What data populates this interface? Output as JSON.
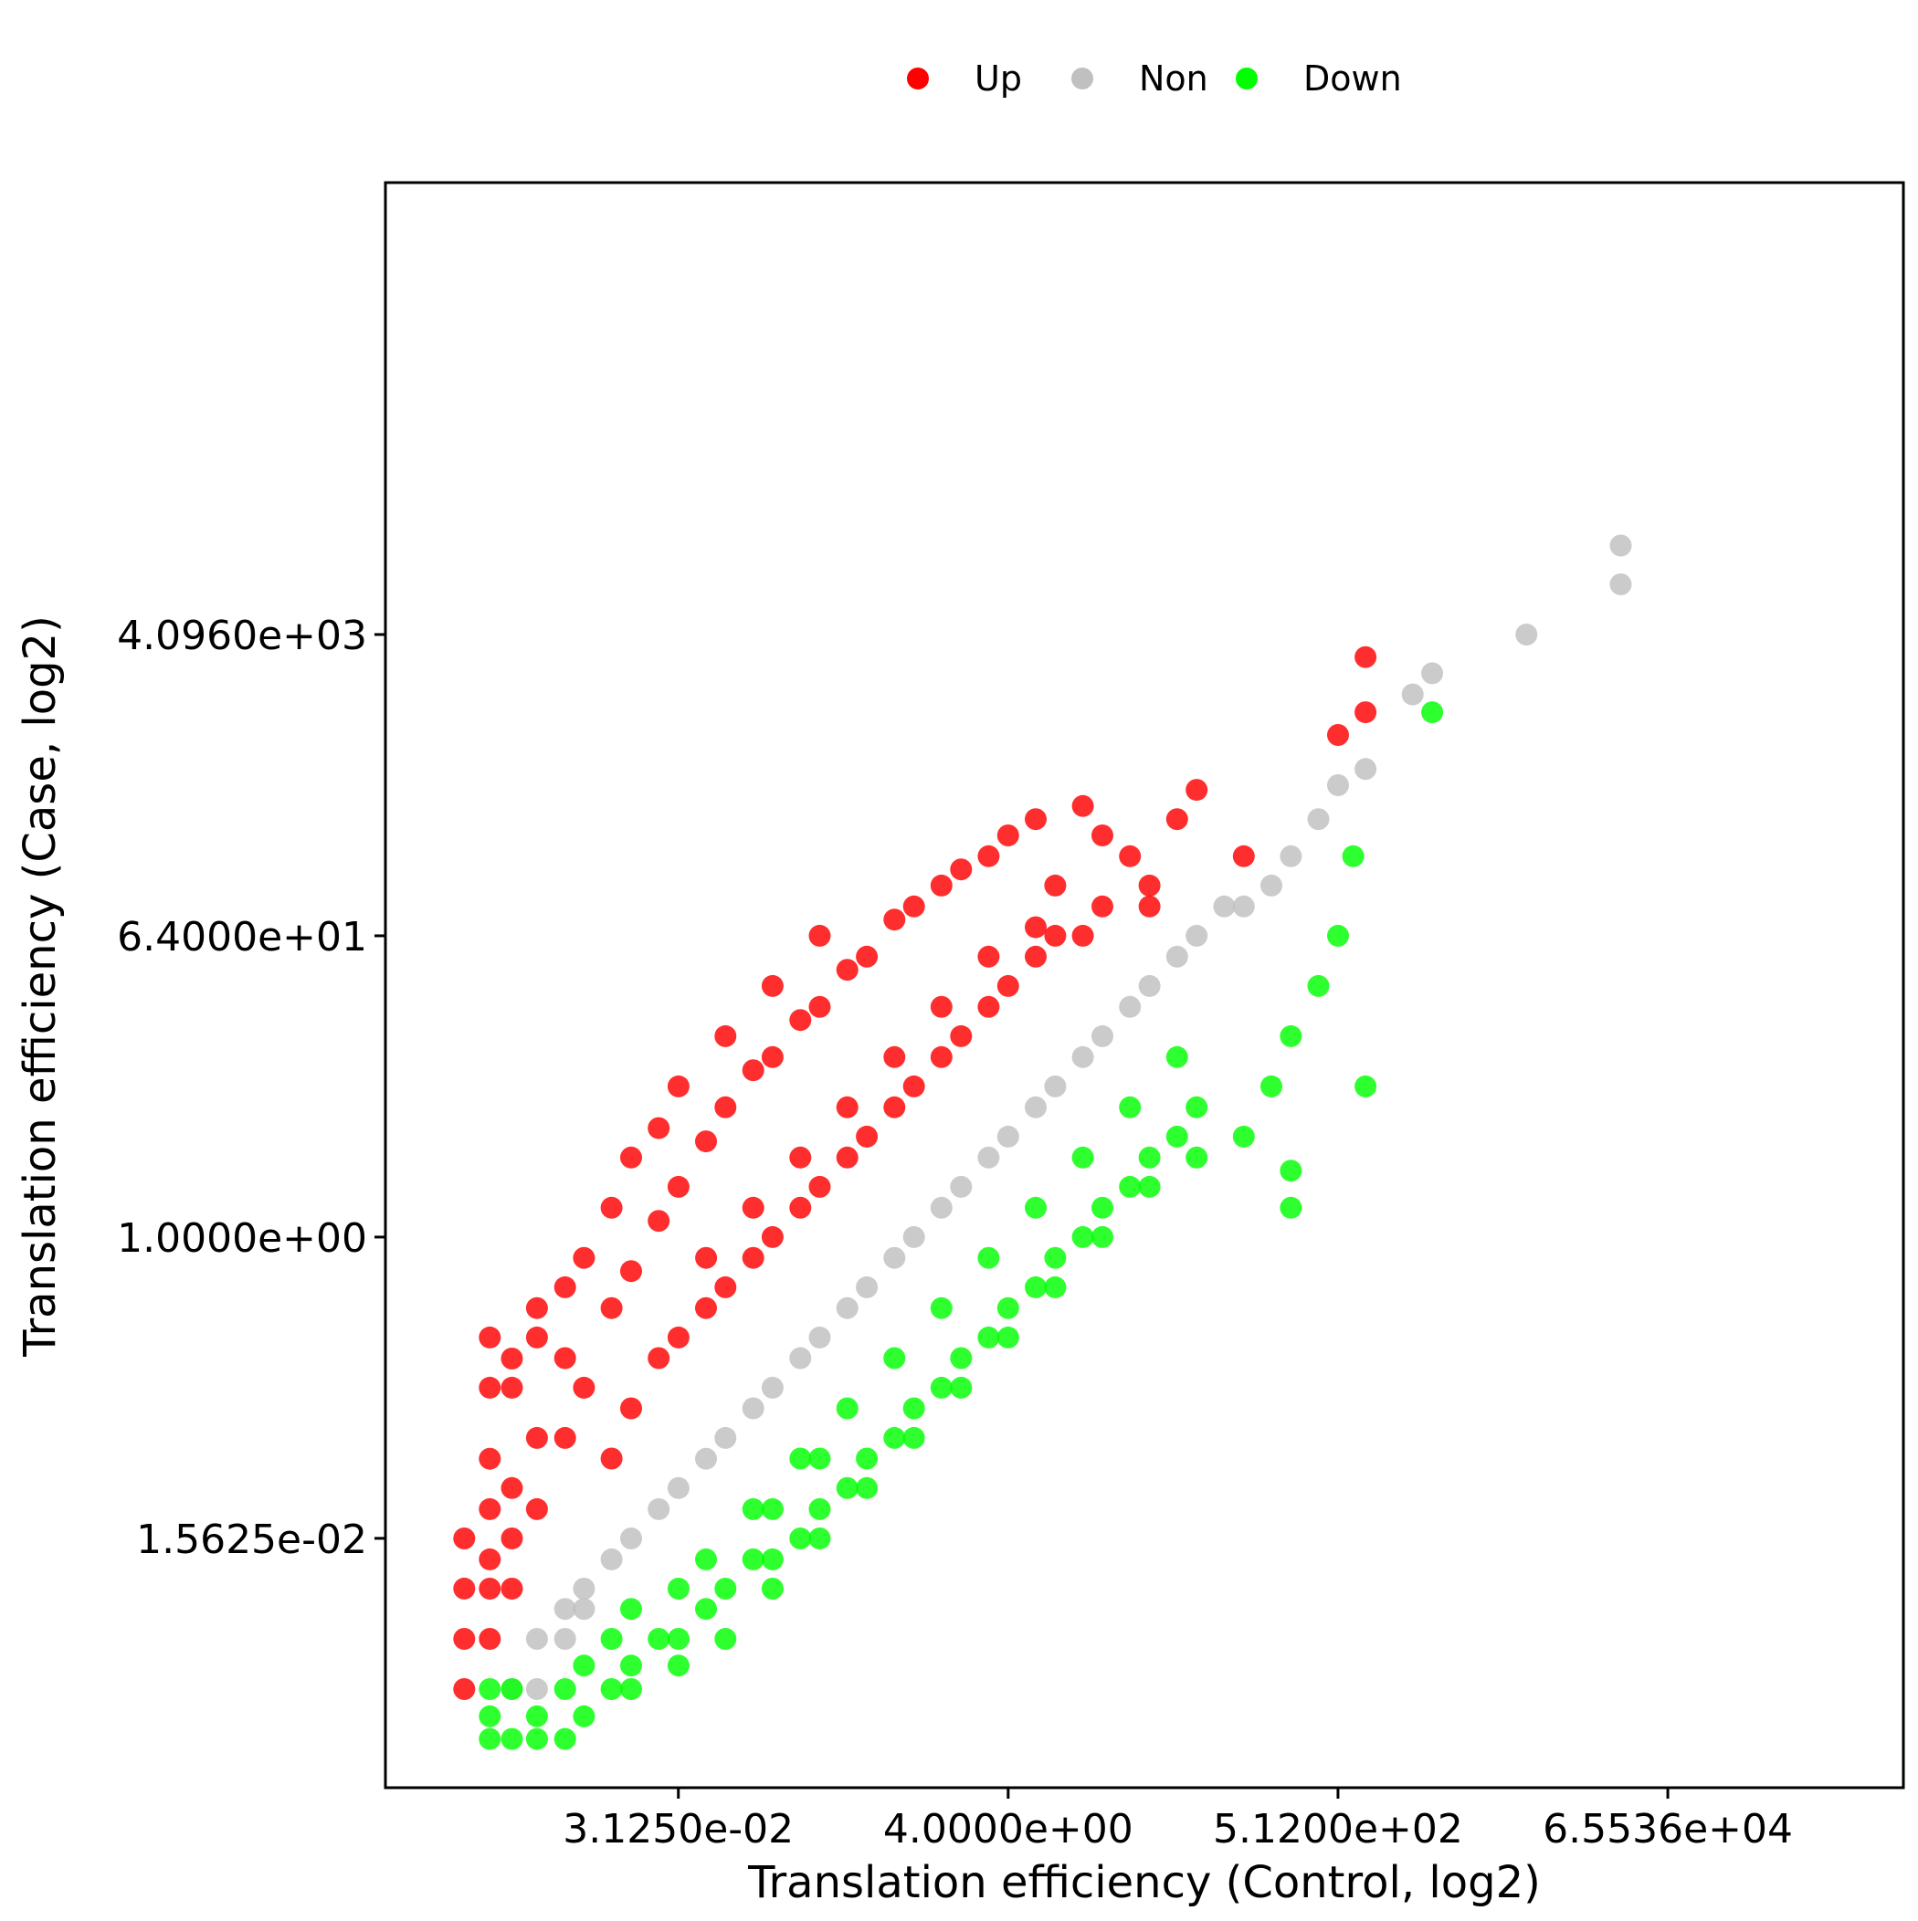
{
  "chart_data": {
    "type": "scatter",
    "title": "",
    "xlabel": "Translation efficiency (Control, log2)",
    "ylabel": "Translation efficiency (Case, log2)",
    "x_scale": "log2",
    "y_scale": "log2",
    "xlim": [
      0.00042,
      2097152
    ],
    "ylim": [
      0.0005,
      2097152
    ],
    "x_ticks": [
      "3.1250e-02",
      "4.0000e+00",
      "5.1200e+02",
      "6.5536e+04"
    ],
    "x_tick_values": [
      0.03125,
      4,
      512,
      65536
    ],
    "y_ticks": [
      "1.5625e-02",
      "1.0000e+00",
      "6.4000e+01",
      "4.0960e+03"
    ],
    "y_tick_values": [
      0.015625,
      1,
      64,
      4096
    ],
    "grid": false,
    "legend_position": "top-center",
    "series": [
      {
        "name": "Up",
        "color": "#ff0000",
        "points": [
          [
            0.00134,
            0.0039
          ],
          [
            0.00134,
            0.00195
          ],
          [
            0.00134,
            0.00781
          ],
          [
            0.00134,
            0.0156
          ],
          [
            0.00195,
            0.0039
          ],
          [
            0.00195,
            0.0078
          ],
          [
            0.00195,
            0.0117
          ],
          [
            0.00195,
            0.0234
          ],
          [
            0.00195,
            0.0469
          ],
          [
            0.00195,
            0.125
          ],
          [
            0.00195,
            0.25
          ],
          [
            0.0027,
            0.0078
          ],
          [
            0.0027,
            0.0156
          ],
          [
            0.0027,
            0.0313
          ],
          [
            0.0027,
            0.125
          ],
          [
            0.0027,
            0.187
          ],
          [
            0.0039,
            0.0234
          ],
          [
            0.0039,
            0.0625
          ],
          [
            0.0039,
            0.25
          ],
          [
            0.0039,
            0.375
          ],
          [
            0.0059,
            0.0625
          ],
          [
            0.0059,
            0.188
          ],
          [
            0.0059,
            0.5
          ],
          [
            0.0078,
            0.125
          ],
          [
            0.0078,
            0.75
          ],
          [
            0.0117,
            0.375
          ],
          [
            0.0117,
            1.5
          ],
          [
            0.0156,
            0.625
          ],
          [
            0.0156,
            3.0
          ],
          [
            0.0234,
            1.25
          ],
          [
            0.0234,
            4.5
          ],
          [
            0.0313,
            2.0
          ],
          [
            0.0313,
            8.0
          ],
          [
            0.0469,
            3.75
          ],
          [
            0.0625,
            6.0
          ],
          [
            0.0625,
            16.0
          ],
          [
            0.094,
            10.0
          ],
          [
            0.125,
            12.0
          ],
          [
            0.125,
            32.0
          ],
          [
            0.188,
            20.0
          ],
          [
            0.25,
            24.0
          ],
          [
            0.25,
            64.0
          ],
          [
            0.375,
            40.0
          ],
          [
            0.5,
            48.0
          ],
          [
            0.75,
            80.0
          ],
          [
            1.0,
            96.0
          ],
          [
            1.5,
            128.0
          ],
          [
            2.0,
            160.0
          ],
          [
            3.0,
            192.0
          ],
          [
            4.0,
            256.0
          ],
          [
            6.0,
            320.0
          ],
          [
            12.0,
            384.0
          ],
          [
            16.0,
            256.0
          ],
          [
            8.0,
            128.0
          ],
          [
            24.0,
            192.0
          ],
          [
            32.0,
            128.0
          ],
          [
            48.0,
            320.0
          ],
          [
            64.0,
            480.0
          ],
          [
            128.0,
            192.0
          ],
          [
            512.0,
            1024.0
          ],
          [
            768.0,
            3000.0
          ],
          [
            768.0,
            1400.0
          ],
          [
            0.0156,
            0.094
          ],
          [
            0.0313,
            0.25
          ],
          [
            0.0625,
            0.5
          ],
          [
            0.125,
            1.0
          ],
          [
            0.25,
            2.0
          ],
          [
            0.5,
            4.0
          ],
          [
            1.0,
            8.0
          ],
          [
            2.0,
            16.0
          ],
          [
            4.0,
            32.0
          ],
          [
            8.0,
            64.0
          ],
          [
            16.0,
            96.0
          ],
          [
            32.0,
            96.0
          ],
          [
            0.047,
            0.75
          ],
          [
            0.094,
            1.5
          ],
          [
            0.188,
            3.0
          ],
          [
            0.375,
            6.0
          ],
          [
            0.75,
            12.0
          ],
          [
            1.5,
            24.0
          ],
          [
            3.0,
            48.0
          ],
          [
            6.0,
            72.0
          ],
          [
            0.0117,
            0.047
          ],
          [
            0.0234,
            0.188
          ],
          [
            0.0469,
            0.375
          ],
          [
            0.094,
            0.75
          ],
          [
            0.188,
            1.5
          ],
          [
            0.375,
            3.0
          ],
          [
            0.75,
            6.0
          ],
          [
            1.5,
            12.0
          ],
          [
            3.0,
            24.0
          ],
          [
            6.0,
            48.0
          ],
          [
            12.0,
            64.0
          ]
        ]
      },
      {
        "name": "Non",
        "color": "#c0c0c0",
        "points": [
          [
            0.0027,
            0.00195
          ],
          [
            0.0039,
            0.00195
          ],
          [
            0.0039,
            0.0039
          ],
          [
            0.0059,
            0.0039
          ],
          [
            0.0059,
            0.0059
          ],
          [
            0.0078,
            0.0059
          ],
          [
            0.0078,
            0.0078
          ],
          [
            0.0117,
            0.0117
          ],
          [
            0.0156,
            0.0156
          ],
          [
            0.0234,
            0.0234
          ],
          [
            0.0313,
            0.0313
          ],
          [
            0.0469,
            0.0469
          ],
          [
            0.0625,
            0.0625
          ],
          [
            0.094,
            0.094
          ],
          [
            0.125,
            0.125
          ],
          [
            0.188,
            0.188
          ],
          [
            0.25,
            0.25
          ],
          [
            0.375,
            0.375
          ],
          [
            0.5,
            0.5
          ],
          [
            0.75,
            0.75
          ],
          [
            1.0,
            1.0
          ],
          [
            1.5,
            1.5
          ],
          [
            2.0,
            2.0
          ],
          [
            3.0,
            3.0
          ],
          [
            4.0,
            4.0
          ],
          [
            6.0,
            6.0
          ],
          [
            8.0,
            8.0
          ],
          [
            12.0,
            12.0
          ],
          [
            16.0,
            16.0
          ],
          [
            24.0,
            24.0
          ],
          [
            32.0,
            32.0
          ],
          [
            48.0,
            48.0
          ],
          [
            64.0,
            64.0
          ],
          [
            96.0,
            96.0
          ],
          [
            128.0,
            96.0
          ],
          [
            192.0,
            128.0
          ],
          [
            256.0,
            192.0
          ],
          [
            384.0,
            320.0
          ],
          [
            512.0,
            512.0
          ],
          [
            768.0,
            640.0
          ],
          [
            1536.0,
            1792.0
          ],
          [
            2048.0,
            2400.0
          ],
          [
            8192.0,
            4096.0
          ],
          [
            32768.0,
            8192.0
          ],
          [
            32768.0,
            14000.0
          ]
        ]
      },
      {
        "name": "Down",
        "color": "#00ff00",
        "points": [
          [
            0.00195,
            0.00098
          ],
          [
            0.00195,
            0.00134
          ],
          [
            0.00195,
            0.00195
          ],
          [
            0.0027,
            0.00098
          ],
          [
            0.0027,
            0.00195
          ],
          [
            0.0039,
            0.00098
          ],
          [
            0.0039,
            0.00134
          ],
          [
            0.0059,
            0.00098
          ],
          [
            0.0059,
            0.00195
          ],
          [
            0.0078,
            0.00134
          ],
          [
            0.0078,
            0.0027
          ],
          [
            0.0117,
            0.00195
          ],
          [
            0.0117,
            0.0039
          ],
          [
            0.0156,
            0.0027
          ],
          [
            0.0156,
            0.0059
          ],
          [
            0.0234,
            0.0039
          ],
          [
            0.0313,
            0.0039
          ],
          [
            0.0313,
            0.0078
          ],
          [
            0.0469,
            0.0059
          ],
          [
            0.0625,
            0.0078
          ],
          [
            0.094,
            0.0117
          ],
          [
            0.125,
            0.0117
          ],
          [
            0.125,
            0.0234
          ],
          [
            0.188,
            0.0156
          ],
          [
            0.25,
            0.0234
          ],
          [
            0.25,
            0.047
          ],
          [
            0.375,
            0.0313
          ],
          [
            0.5,
            0.047
          ],
          [
            0.75,
            0.0625
          ],
          [
            1.0,
            0.094
          ],
          [
            1.5,
            0.125
          ],
          [
            2.0,
            0.188
          ],
          [
            3.0,
            0.25
          ],
          [
            4.0,
            0.375
          ],
          [
            6.0,
            0.5
          ],
          [
            8.0,
            0.75
          ],
          [
            12.0,
            1.0
          ],
          [
            16.0,
            1.5
          ],
          [
            24.0,
            2.0
          ],
          [
            32.0,
            3.0
          ],
          [
            48.0,
            4.0
          ],
          [
            64.0,
            6.0
          ],
          [
            128.0,
            4.0
          ],
          [
            256.0,
            1.5
          ],
          [
            256.0,
            2.5
          ],
          [
            192.0,
            8.0
          ],
          [
            256.0,
            16.0
          ],
          [
            384.0,
            32.0
          ],
          [
            512.0,
            64.0
          ],
          [
            768.0,
            8.0
          ],
          [
            640.0,
            192.0
          ],
          [
            2048.0,
            1400.0
          ],
          [
            0.0156,
            0.00195
          ],
          [
            0.0313,
            0.0027
          ],
          [
            0.0625,
            0.0039
          ],
          [
            0.125,
            0.0078
          ],
          [
            0.25,
            0.0156
          ],
          [
            0.5,
            0.0313
          ],
          [
            1.0,
            0.0625
          ],
          [
            2.0,
            0.125
          ],
          [
            4.0,
            0.25
          ],
          [
            8.0,
            0.5
          ],
          [
            16.0,
            1.0
          ],
          [
            32.0,
            2.0
          ],
          [
            64.0,
            3.0
          ],
          [
            0.0469,
            0.0117
          ],
          [
            0.094,
            0.0234
          ],
          [
            0.188,
            0.047
          ],
          [
            0.375,
            0.094
          ],
          [
            0.75,
            0.188
          ],
          [
            1.5,
            0.375
          ],
          [
            3.0,
            0.75
          ],
          [
            6.0,
            1.5
          ],
          [
            12.0,
            3.0
          ],
          [
            24.0,
            6.0
          ],
          [
            48.0,
            12.0
          ]
        ]
      }
    ]
  },
  "legend": {
    "items": [
      {
        "label": "Up",
        "color": "#ff0000"
      },
      {
        "label": "Non",
        "color": "#c0c0c0"
      },
      {
        "label": "Down",
        "color": "#00ff00"
      }
    ]
  }
}
